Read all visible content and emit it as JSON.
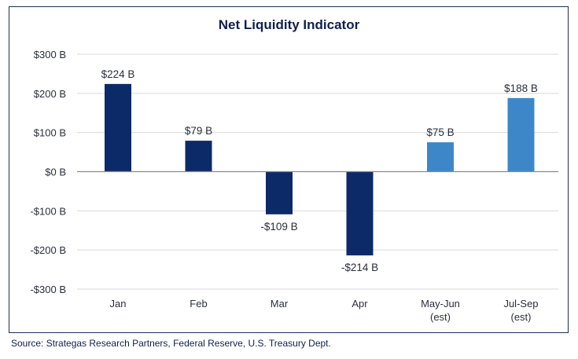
{
  "chart_data": {
    "type": "bar",
    "title": "Net Liquidity Indicator",
    "categories": [
      [
        "Jan"
      ],
      [
        "Feb"
      ],
      [
        "Mar"
      ],
      [
        "Apr"
      ],
      [
        "May-Jun",
        "(est)"
      ],
      [
        "Jul-Sep",
        "(est)"
      ]
    ],
    "values": [
      224,
      79,
      -109,
      -214,
      75,
      188
    ],
    "value_labels": [
      "$224 B",
      "$79 B",
      "-$109 B",
      "-$214 B",
      "$75 B",
      "$188 B"
    ],
    "bar_colors": [
      "#0d2a68",
      "#0d2a68",
      "#0d2a68",
      "#0d2a68",
      "#3d87c9",
      "#3d87c9"
    ],
    "y_ticks": [
      300,
      200,
      100,
      0,
      -100,
      -200,
      -300
    ],
    "y_tick_labels": [
      "$300 B",
      "$200 B",
      "$100 B",
      "$0 B",
      "-$100 B",
      "-$200 B",
      "-$300 B"
    ],
    "ylim": [
      -300,
      300
    ],
    "grid": true
  },
  "source": "Source: Strategas Research Partners, Federal Reserve, U.S. Treasury Dept."
}
